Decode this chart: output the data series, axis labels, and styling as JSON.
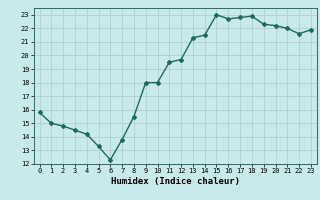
{
  "x": [
    0,
    1,
    2,
    3,
    4,
    5,
    6,
    7,
    8,
    9,
    10,
    11,
    12,
    13,
    14,
    15,
    16,
    17,
    18,
    19,
    20,
    21,
    22,
    23
  ],
  "y": [
    15.8,
    15.0,
    14.8,
    14.5,
    14.2,
    13.3,
    12.3,
    13.8,
    15.5,
    18.0,
    18.0,
    19.5,
    19.7,
    21.3,
    21.5,
    23.0,
    22.7,
    22.8,
    22.9,
    22.3,
    22.2,
    22.0,
    21.6,
    21.9
  ],
  "xlabel": "Humidex (Indice chaleur)",
  "xlim": [
    -0.5,
    23.5
  ],
  "ylim": [
    12,
    23.5
  ],
  "yticks": [
    12,
    13,
    14,
    15,
    16,
    17,
    18,
    19,
    20,
    21,
    22,
    23
  ],
  "xticks": [
    0,
    1,
    2,
    3,
    4,
    5,
    6,
    7,
    8,
    9,
    10,
    11,
    12,
    13,
    14,
    15,
    16,
    17,
    18,
    19,
    20,
    21,
    22,
    23
  ],
  "line_color": "#1a6b5a",
  "marker": "D",
  "marker_size": 2.0,
  "bg_color": "#c8eaea",
  "grid_color": "#b0d0d0",
  "tick_label_fontsize": 5.0,
  "xlabel_fontsize": 6.5,
  "line_width": 1.0
}
